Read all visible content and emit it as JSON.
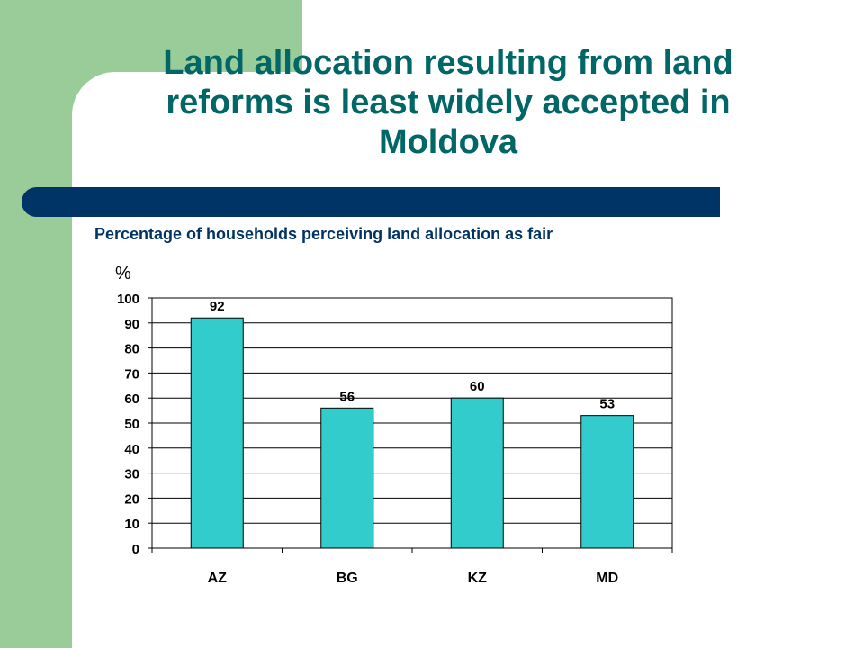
{
  "slide": {
    "title": "Land allocation resulting from land reforms is least widely accepted in Moldova",
    "subtitle": "Percentage of households perceiving land allocation as fair",
    "unit_label": "%"
  },
  "colors": {
    "accent_green": "#99cc99",
    "title_teal": "#006666",
    "navy_bar": "#003366",
    "bar_fill": "#33cccc"
  },
  "chart_data": {
    "type": "bar",
    "title": "",
    "xlabel": "",
    "ylabel": "%",
    "categories": [
      "AZ",
      "BG",
      "KZ",
      "MD"
    ],
    "values": [
      92,
      56,
      60,
      53
    ],
    "data_labels": [
      "92",
      "56",
      "60",
      "53"
    ],
    "ylim": [
      0,
      100
    ],
    "yticks": [
      0,
      10,
      20,
      30,
      40,
      50,
      60,
      70,
      80,
      90,
      100
    ],
    "grid": true,
    "legend": "none"
  }
}
